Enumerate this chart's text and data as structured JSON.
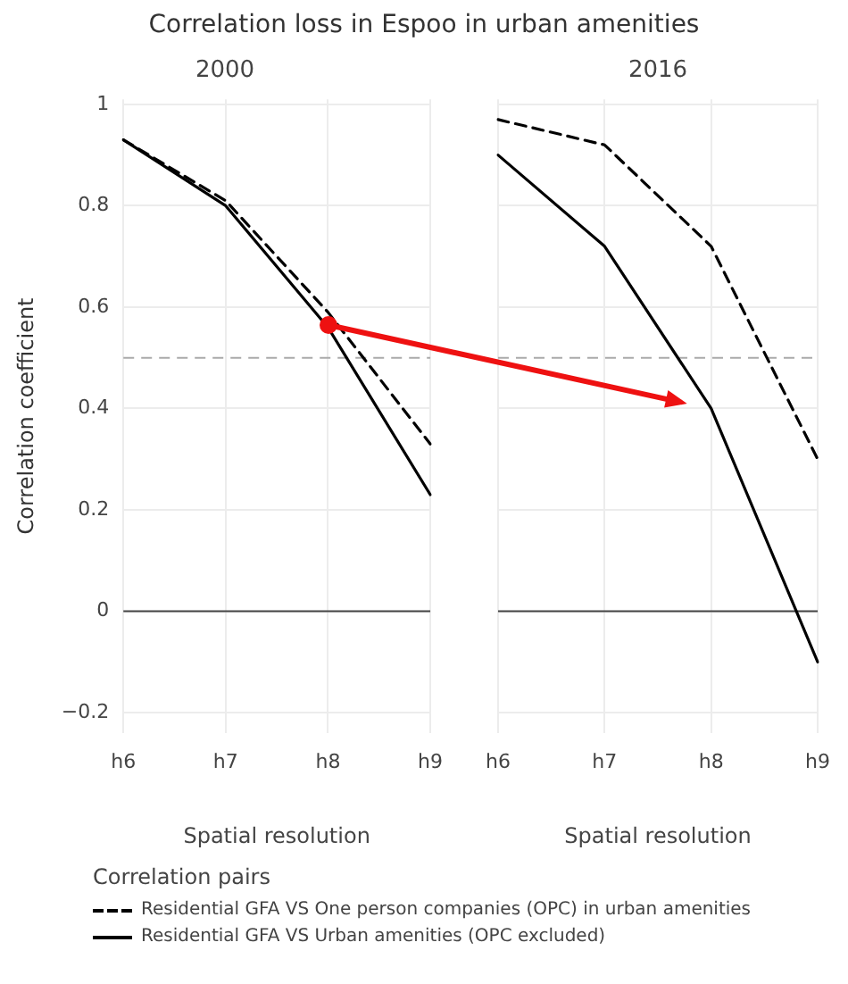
{
  "chart_data": [
    {
      "type": "line",
      "title": "Correlation loss in Espoo in urban amenities",
      "subtitle": "2000",
      "xlabel": "Spatial resolution",
      "ylabel": "Correlation coefficient",
      "categories": [
        "h6",
        "h7",
        "h8",
        "h9"
      ],
      "series": [
        {
          "name": "Residential GFA VS One person companies (OPC) in urban amenities",
          "color": "#000000",
          "line_style": "dashed",
          "values": [
            0.93,
            0.81,
            0.59,
            0.33
          ]
        },
        {
          "name": "Residential GFA VS Urban amenities (OPC excluded)",
          "color": "#000000",
          "line_style": "solid",
          "values": [
            0.93,
            0.8,
            0.56,
            0.23
          ]
        }
      ],
      "ylim": [
        -0.24,
        1.01
      ],
      "yticks": [
        {
          "value": -0.2,
          "label": "−0.2"
        },
        0,
        0.2,
        0.4,
        0.6,
        0.8,
        1
      ],
      "grid": true,
      "legend": "bottom",
      "legend_title": "Correlation pairs",
      "ref_lines": [
        {
          "axis": "y",
          "value": 0.5,
          "color": "#aaaaaa",
          "line_style": "dashed"
        },
        {
          "axis": "y",
          "value": 0,
          "color": "#444444",
          "line_style": "solid"
        }
      ]
    },
    {
      "type": "line",
      "subtitle": "2016",
      "xlabel": "Spatial resolution",
      "categories": [
        "h6",
        "h7",
        "h8",
        "h9"
      ],
      "series": [
        {
          "color": "#000000",
          "line_style": "dashed",
          "values": [
            0.97,
            0.92,
            0.72,
            0.3
          ]
        },
        {
          "color": "#000000",
          "line_style": "solid",
          "values": [
            0.9,
            0.72,
            0.4,
            -0.1
          ]
        }
      ],
      "ylim": [
        -0.24,
        1.01
      ],
      "yticks": [
        -0.2,
        0,
        0.2,
        0.4,
        0.6,
        0.8,
        1
      ],
      "grid": true,
      "tick_labels": "x",
      "ref_lines": [
        {
          "axis": "y",
          "value": 0.5,
          "color": "#aaaaaa",
          "line_style": "dashed"
        },
        {
          "axis": "y",
          "value": 0,
          "color": "#444444",
          "line_style": "solid"
        }
      ]
    }
  ]
}
